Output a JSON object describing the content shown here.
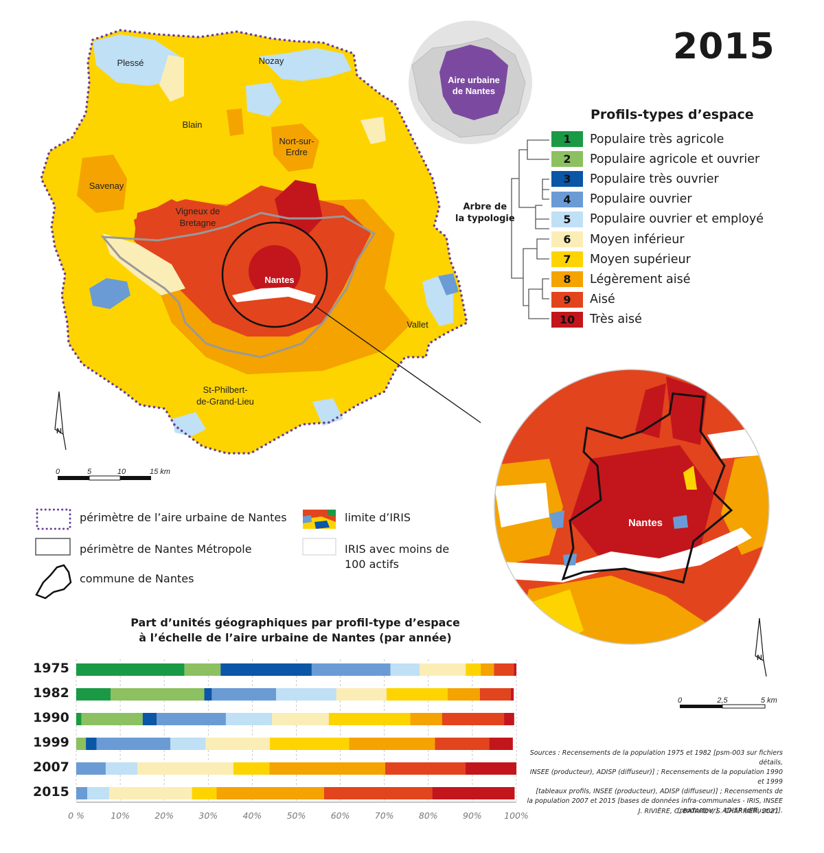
{
  "year": "2015",
  "inset_label": [
    "Aire urbaine",
    "de Nantes"
  ],
  "legend": {
    "title": "Profils-types d’espace",
    "tree_label": [
      "Arbre de",
      "la typologie"
    ],
    "profiles": [
      {
        "num": "1",
        "label": "Populaire très agricole",
        "color": "#1a9a45",
        "text": "#111"
      },
      {
        "num": "2",
        "label": "Populaire agricole et ouvrier",
        "color": "#8cc060",
        "text": "#111"
      },
      {
        "num": "3",
        "label": "Populaire très ouvrier",
        "color": "#0b56a6",
        "text": "#111"
      },
      {
        "num": "4",
        "label": "Populaire ouvrier",
        "color": "#6a9bd5",
        "text": "#111"
      },
      {
        "num": "5",
        "label": "Populaire ouvrier et employé",
        "color": "#bfe0f5",
        "text": "#111"
      },
      {
        "num": "6",
        "label": "Moyen inférieur",
        "color": "#fbedb6",
        "text": "#111"
      },
      {
        "num": "7",
        "label": "Moyen supérieur",
        "color": "#fdd400",
        "text": "#111"
      },
      {
        "num": "8",
        "label": "Légèrement aisé",
        "color": "#f4a300",
        "text": "#111"
      },
      {
        "num": "9",
        "label": "Aisé",
        "color": "#e2441d",
        "text": "#111"
      },
      {
        "num": "10",
        "label": "Très aisé",
        "color": "#c3161c",
        "text": "#111"
      }
    ]
  },
  "map_labels": {
    "plesse": "Plessé",
    "nozay": "Nozay",
    "blain": "Blain",
    "nort1": "Nort-sur-",
    "nort2": "Erdre",
    "savenay": "Savenay",
    "vigneux1": "Vigneux de",
    "vigneux2": "Bretagne",
    "nantes": "Nantes",
    "vallet": "Vallet",
    "stphil1": "St-Philbert-",
    "stphil2": "de-Grand-Lieu",
    "zoom_nantes": "Nantes",
    "north": "N"
  },
  "scales": {
    "main": [
      "0",
      "5",
      "10",
      "15 km"
    ],
    "zoom": [
      "0",
      "2,5",
      "5 km"
    ]
  },
  "map_legend": {
    "perimeter_aire": "périmètre de l’aire urbaine de Nantes",
    "perimeter_metropole": "périmètre de Nantes Métropole",
    "commune": "commune de Nantes",
    "iris_limit": "limite d’IRIS",
    "iris_low1": "IRIS avec moins de",
    "iris_low2": "100 actifs"
  },
  "bar_chart_title": [
    "Part d’unités géographiques par profil-type d’espace",
    "à l’échelle de l’aire urbaine de Nantes (par année)"
  ],
  "chart_data": {
    "type": "bar",
    "orientation": "horizontal",
    "stacked": true,
    "categories": [
      "1975",
      "1982",
      "1990",
      "1999",
      "2007",
      "2015"
    ],
    "series": [
      {
        "name": "1",
        "color": "#1a9a45",
        "values": [
          24.6,
          7.8,
          1.2,
          0,
          0,
          0
        ]
      },
      {
        "name": "2",
        "color": "#8cc060",
        "values": [
          8.2,
          21.3,
          13.9,
          2.2,
          0,
          0
        ]
      },
      {
        "name": "3",
        "color": "#0b56a6",
        "values": [
          20.7,
          1.7,
          3.2,
          2.4,
          0,
          0
        ]
      },
      {
        "name": "4",
        "color": "#6a9bd5",
        "values": [
          17.9,
          14.6,
          15.7,
          16.8,
          6.7,
          2.5
        ]
      },
      {
        "name": "5",
        "color": "#bfe0f5",
        "values": [
          6.6,
          13.7,
          10.5,
          8.0,
          7.2,
          5.0
        ]
      },
      {
        "name": "6",
        "color": "#fbedb6",
        "values": [
          10.5,
          11.4,
          12.9,
          14.6,
          21.8,
          18.8
        ]
      },
      {
        "name": "7",
        "color": "#fdd400",
        "values": [
          3.4,
          13.9,
          18.5,
          18.0,
          8.2,
          5.6
        ]
      },
      {
        "name": "8",
        "color": "#f4a300",
        "values": [
          3.0,
          7.3,
          7.2,
          19.5,
          26.3,
          24.4
        ]
      },
      {
        "name": "9",
        "color": "#e2441d",
        "values": [
          4.5,
          7.0,
          14.1,
          12.3,
          18.2,
          24.6
        ]
      },
      {
        "name": "10",
        "color": "#c3161c",
        "values": [
          0.6,
          0.7,
          2.3,
          5.4,
          11.6,
          18.7
        ]
      }
    ],
    "xlim": [
      0,
      100
    ],
    "xticks": [
      "0 %",
      "10%",
      "20%",
      "30%",
      "40%",
      "50%",
      "60%",
      "70%",
      "80%",
      "90%",
      "100%"
    ]
  },
  "sources": [
    "Sources : Recensements de la population 1975 et 1982 [psm-003 sur fichiers détails,",
    "INSEE (producteur), ADISP (diffuseur)] ; Recensements de la population 1990 et 1999",
    "[tableaux profils, INSEE (producteur), ADISP (diffuseur)] ; Recensements de",
    "la population 2007 et 2015 [bases de données infra-communales - IRIS, INSEE",
    "(producteur), ADISP (diffuseur)]."
  ],
  "authors": "J. RIVIÈRE, C. BATARDY, S. CHARRIER, 2021"
}
